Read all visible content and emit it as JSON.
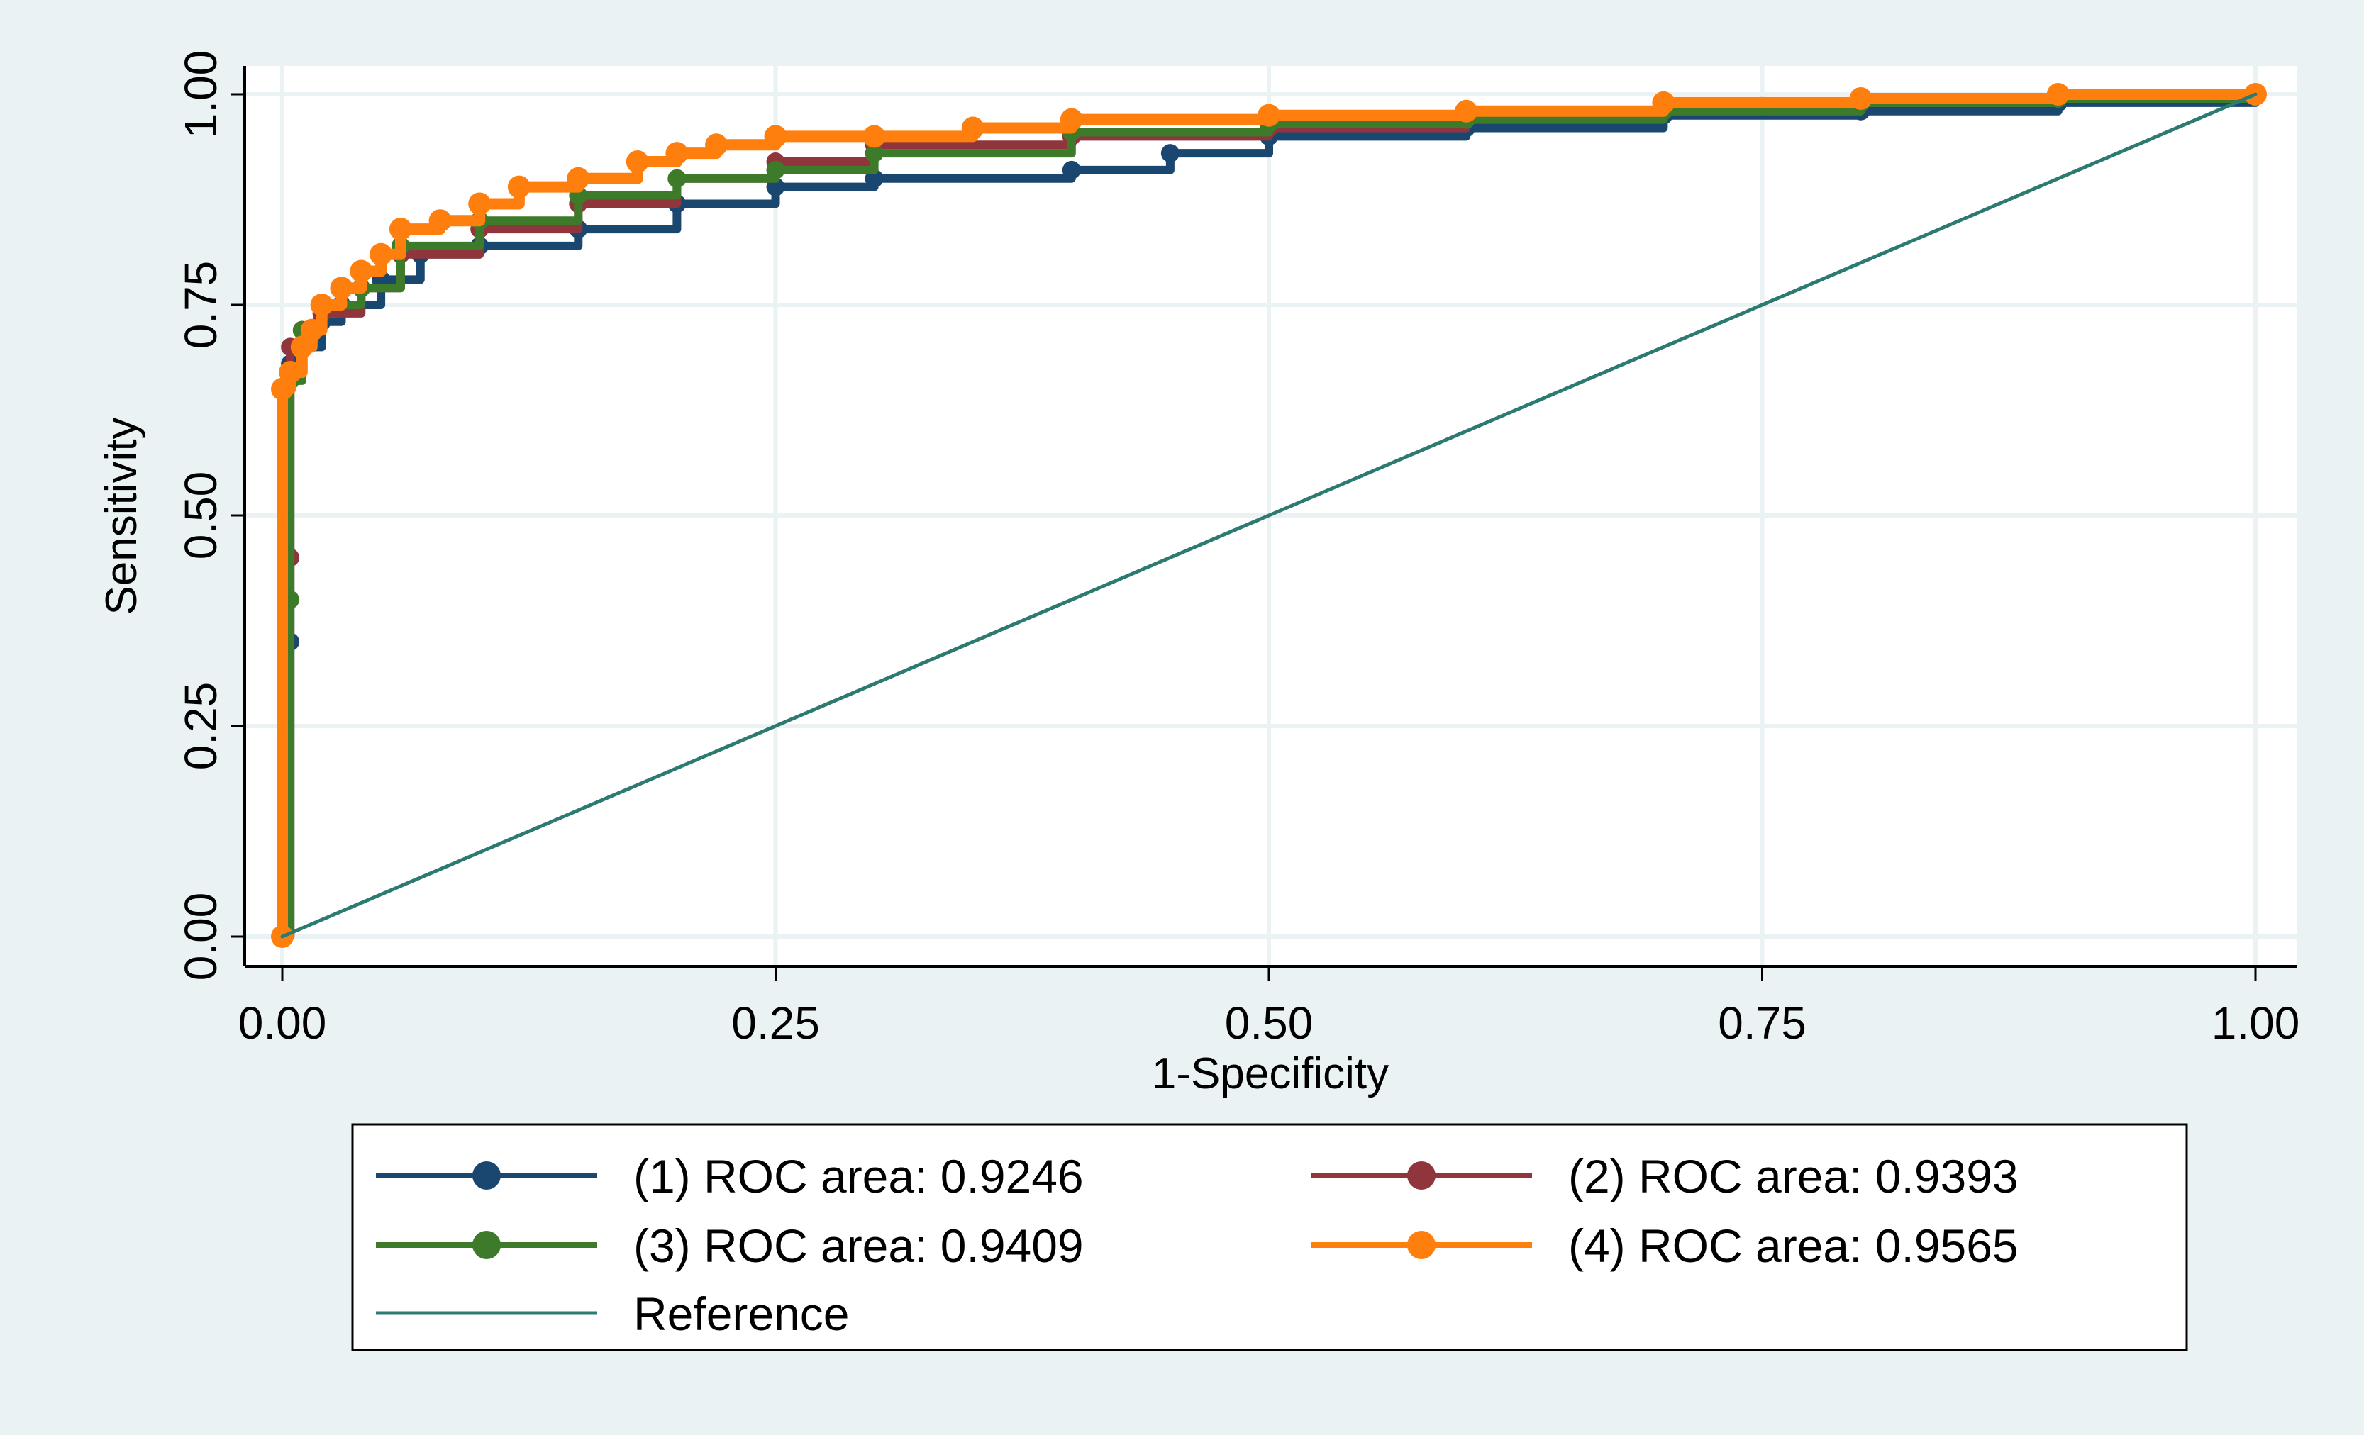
{
  "chart_data": {
    "type": "line",
    "xlabel": "1-Specificity",
    "ylabel": "Sensitivity",
    "xlim": [
      0,
      1
    ],
    "ylim": [
      0,
      1
    ],
    "grid": true,
    "x_ticks": [
      "0.00",
      "0.25",
      "0.50",
      "0.75",
      "1.00"
    ],
    "y_ticks": [
      "0.00",
      "0.25",
      "0.50",
      "0.75",
      "1.00"
    ],
    "legend_position": "bottom",
    "series": [
      {
        "name": "(1) ROC area: 0.9246",
        "color": "#1a476f",
        "x": [
          0,
          0.004,
          0.004,
          0.01,
          0.02,
          0.03,
          0.05,
          0.07,
          0.1,
          0.15,
          0.2,
          0.25,
          0.3,
          0.4,
          0.45,
          0.5,
          0.6,
          0.7,
          0.8,
          0.9,
          1.0
        ],
        "y": [
          0,
          0.35,
          0.68,
          0.7,
          0.73,
          0.75,
          0.78,
          0.81,
          0.82,
          0.84,
          0.87,
          0.89,
          0.9,
          0.91,
          0.93,
          0.95,
          0.96,
          0.975,
          0.98,
          0.99,
          1.0
        ]
      },
      {
        "name": "(2) ROC area: 0.9393",
        "color": "#90353b",
        "x": [
          0,
          0.004,
          0.004,
          0.01,
          0.02,
          0.04,
          0.06,
          0.1,
          0.15,
          0.2,
          0.25,
          0.3,
          0.4,
          0.5,
          0.6,
          0.7,
          0.8,
          0.9,
          1.0
        ],
        "y": [
          0,
          0.45,
          0.7,
          0.72,
          0.74,
          0.77,
          0.81,
          0.84,
          0.87,
          0.9,
          0.92,
          0.94,
          0.95,
          0.96,
          0.97,
          0.98,
          0.99,
          0.995,
          1.0
        ]
      },
      {
        "name": "(3) ROC area: 0.9409",
        "color": "#3d7b2a",
        "x": [
          0,
          0.004,
          0.004,
          0.01,
          0.02,
          0.04,
          0.06,
          0.1,
          0.15,
          0.2,
          0.25,
          0.3,
          0.4,
          0.5,
          0.6,
          0.7,
          0.8,
          0.9,
          1.0
        ],
        "y": [
          0,
          0.4,
          0.66,
          0.72,
          0.75,
          0.77,
          0.82,
          0.85,
          0.88,
          0.9,
          0.91,
          0.93,
          0.955,
          0.965,
          0.97,
          0.98,
          0.99,
          0.995,
          1.0
        ]
      },
      {
        "name": "(4) ROC area: 0.9565",
        "color": "#ff7f0e",
        "x": [
          0,
          0.0,
          0.004,
          0.01,
          0.015,
          0.02,
          0.03,
          0.04,
          0.05,
          0.06,
          0.08,
          0.1,
          0.12,
          0.15,
          0.18,
          0.2,
          0.22,
          0.25,
          0.3,
          0.35,
          0.4,
          0.5,
          0.6,
          0.7,
          0.8,
          0.9,
          1.0
        ],
        "y": [
          0,
          0.65,
          0.67,
          0.7,
          0.72,
          0.75,
          0.77,
          0.79,
          0.81,
          0.84,
          0.85,
          0.87,
          0.89,
          0.9,
          0.92,
          0.93,
          0.94,
          0.95,
          0.95,
          0.96,
          0.97,
          0.975,
          0.98,
          0.99,
          0.995,
          1.0,
          1.0
        ]
      },
      {
        "name": "Reference",
        "color": "#2d7a70",
        "x": [
          0,
          1
        ],
        "y": [
          0,
          1
        ]
      }
    ]
  },
  "legend": {
    "items": [
      {
        "label": "(1) ROC area: 0.9246",
        "color": "#1a476f",
        "marker": true
      },
      {
        "label": "(2) ROC area: 0.9393",
        "color": "#90353b",
        "marker": true
      },
      {
        "label": "(3) ROC area: 0.9409",
        "color": "#3d7b2a",
        "marker": true
      },
      {
        "label": "(4) ROC area: 0.9565",
        "color": "#ff7f0e",
        "marker": true
      },
      {
        "label": "Reference",
        "color": "#2d7a70",
        "marker": false
      }
    ]
  },
  "colors": {
    "outer_background": "#eaf2f3",
    "plot_background": "#ffffff",
    "grid": "#eaf2f3"
  }
}
